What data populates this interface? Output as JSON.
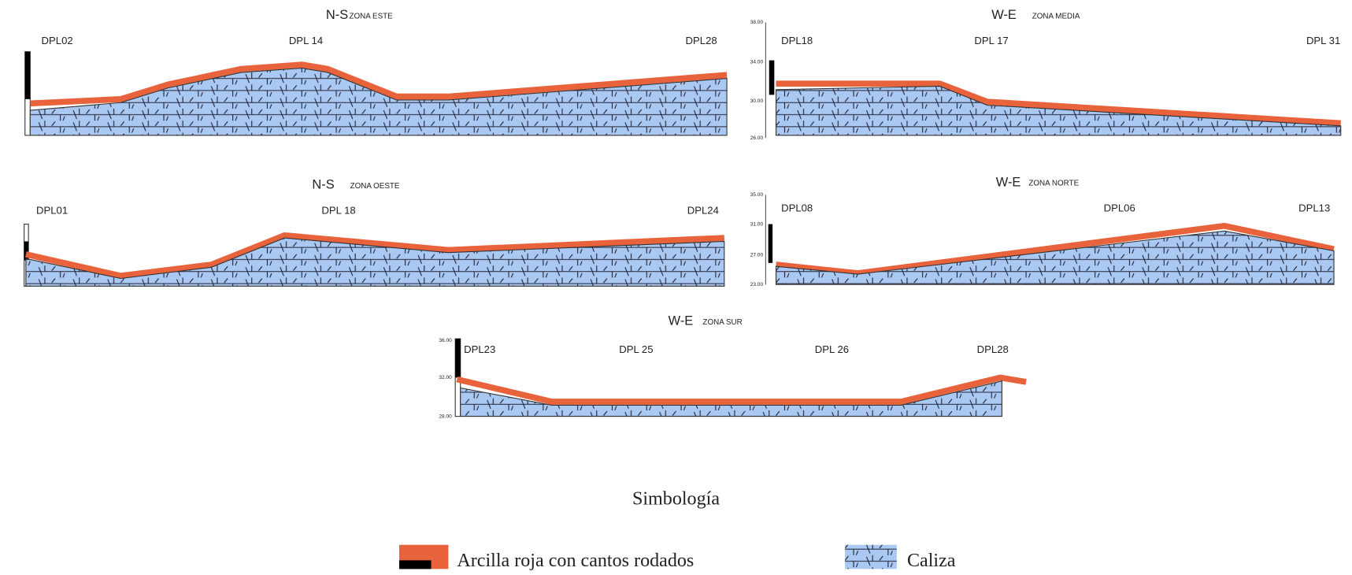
{
  "panels": [
    {
      "title": "N-S",
      "zone": "ZONA ESTE",
      "wells": [
        "DPL02",
        "DPL 14",
        "DPL28"
      ]
    },
    {
      "title": "W-E",
      "zone": "ZONA MEDIA",
      "ticks": [
        "38.00",
        "34.00",
        "30.00",
        "26.00"
      ],
      "wells": [
        "DPL18",
        "DPL 17",
        "DPL 31"
      ]
    },
    {
      "title": "N-S",
      "zone": "ZONA OESTE",
      "wells": [
        "DPL01",
        "DPL 18",
        "DPL24"
      ]
    },
    {
      "title": "W-E",
      "zone": "ZONA NORTE",
      "ticks": [
        "35.00",
        "31.00",
        "27.00",
        "23.00"
      ],
      "wells": [
        "DPL08",
        "DPL06",
        "DPL13"
      ]
    },
    {
      "title": "W-E",
      "zone": "ZONA SUR",
      "ticks": [
        "36.00",
        "32.00",
        "28.00"
      ],
      "wells": [
        "DPL23",
        "DPL 25",
        "DPL 26",
        "DPL28"
      ]
    }
  ],
  "legend": {
    "title": "Simbología",
    "items": [
      "Arcilla roja con cantos rodados",
      "Caliza"
    ]
  }
}
